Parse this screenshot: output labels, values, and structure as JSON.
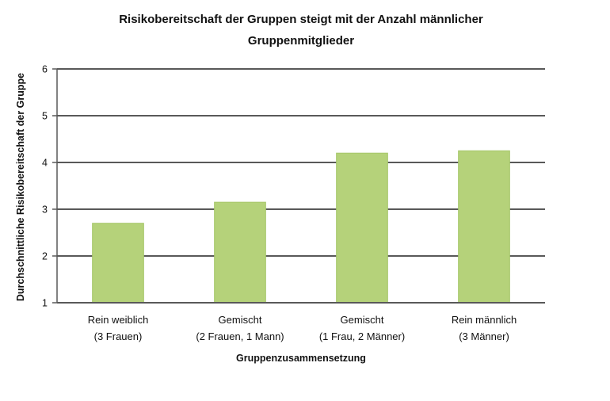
{
  "chart_data": {
    "type": "bar",
    "title": [
      "Risikobereitschaft der Gruppen steigt mit der Anzahl männlicher",
      "Gruppenmitglieder"
    ],
    "xlabel": "Gruppenzusammensetzung",
    "ylabel": "Durchschnittliche Risikobereitschaft der Gruppe",
    "categories": [
      [
        "Rein weiblich",
        "(3 Frauen)"
      ],
      [
        "Gemischt",
        "(2 Frauen, 1 Mann)"
      ],
      [
        "Gemischt",
        "(1 Frau, 2 Männer)"
      ],
      [
        "Rein männlich",
        "(3 Männer)"
      ]
    ],
    "values": [
      2.7,
      3.15,
      4.2,
      4.25
    ],
    "ylim": [
      1,
      6
    ],
    "yticks": [
      "1",
      "2",
      "3",
      "4",
      "5",
      "6"
    ],
    "grid": true,
    "legend": "none",
    "bar_color": "#b5d27a",
    "bar_edge_color": "#a6c76a",
    "grid_color": "#595959"
  }
}
